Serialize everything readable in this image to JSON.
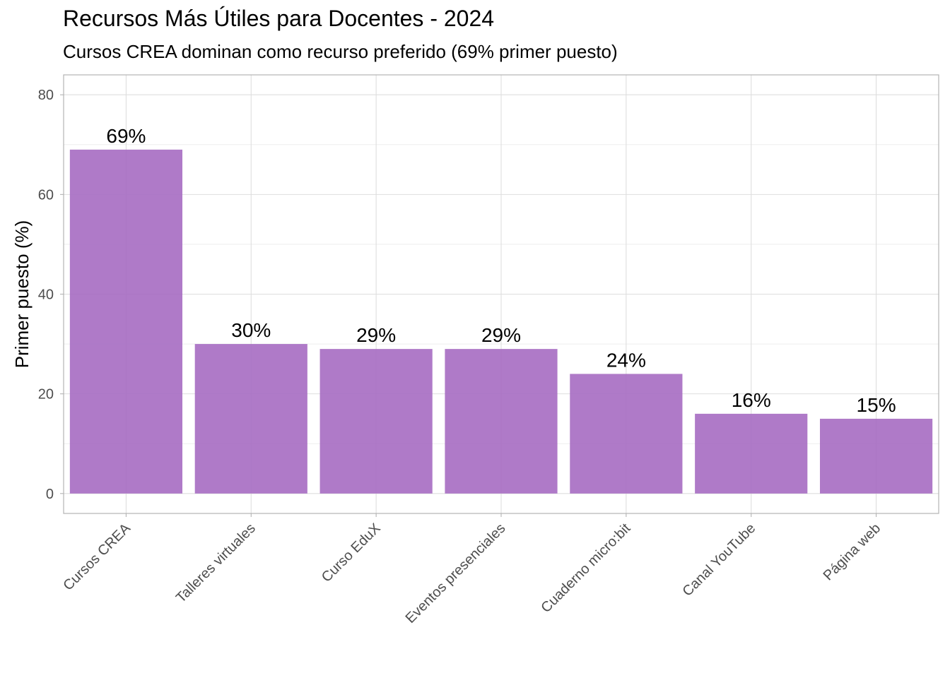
{
  "chart_data": {
    "type": "bar",
    "title": "Recursos Más Útiles para Docentes - 2024",
    "subtitle": "Cursos CREA dominan como recurso preferido (69% primer puesto)",
    "xlabel": "",
    "ylabel": "Primer puesto (%)",
    "categories": [
      "Cursos CREA",
      "Talleres virtuales",
      "Curso EduX",
      "Eventos presenciales",
      "Cuaderno micro:bit",
      "Canal YouTube",
      "Página web"
    ],
    "values": [
      69,
      30,
      29,
      29,
      24,
      16,
      15
    ],
    "data_labels": [
      "69%",
      "30%",
      "29%",
      "29%",
      "24%",
      "16%",
      "15%"
    ],
    "ylim": [
      -4,
      84
    ],
    "yticks": [
      0,
      20,
      40,
      60,
      80
    ],
    "grid": true,
    "bar_color": "#a66bc2",
    "legend": "none"
  }
}
